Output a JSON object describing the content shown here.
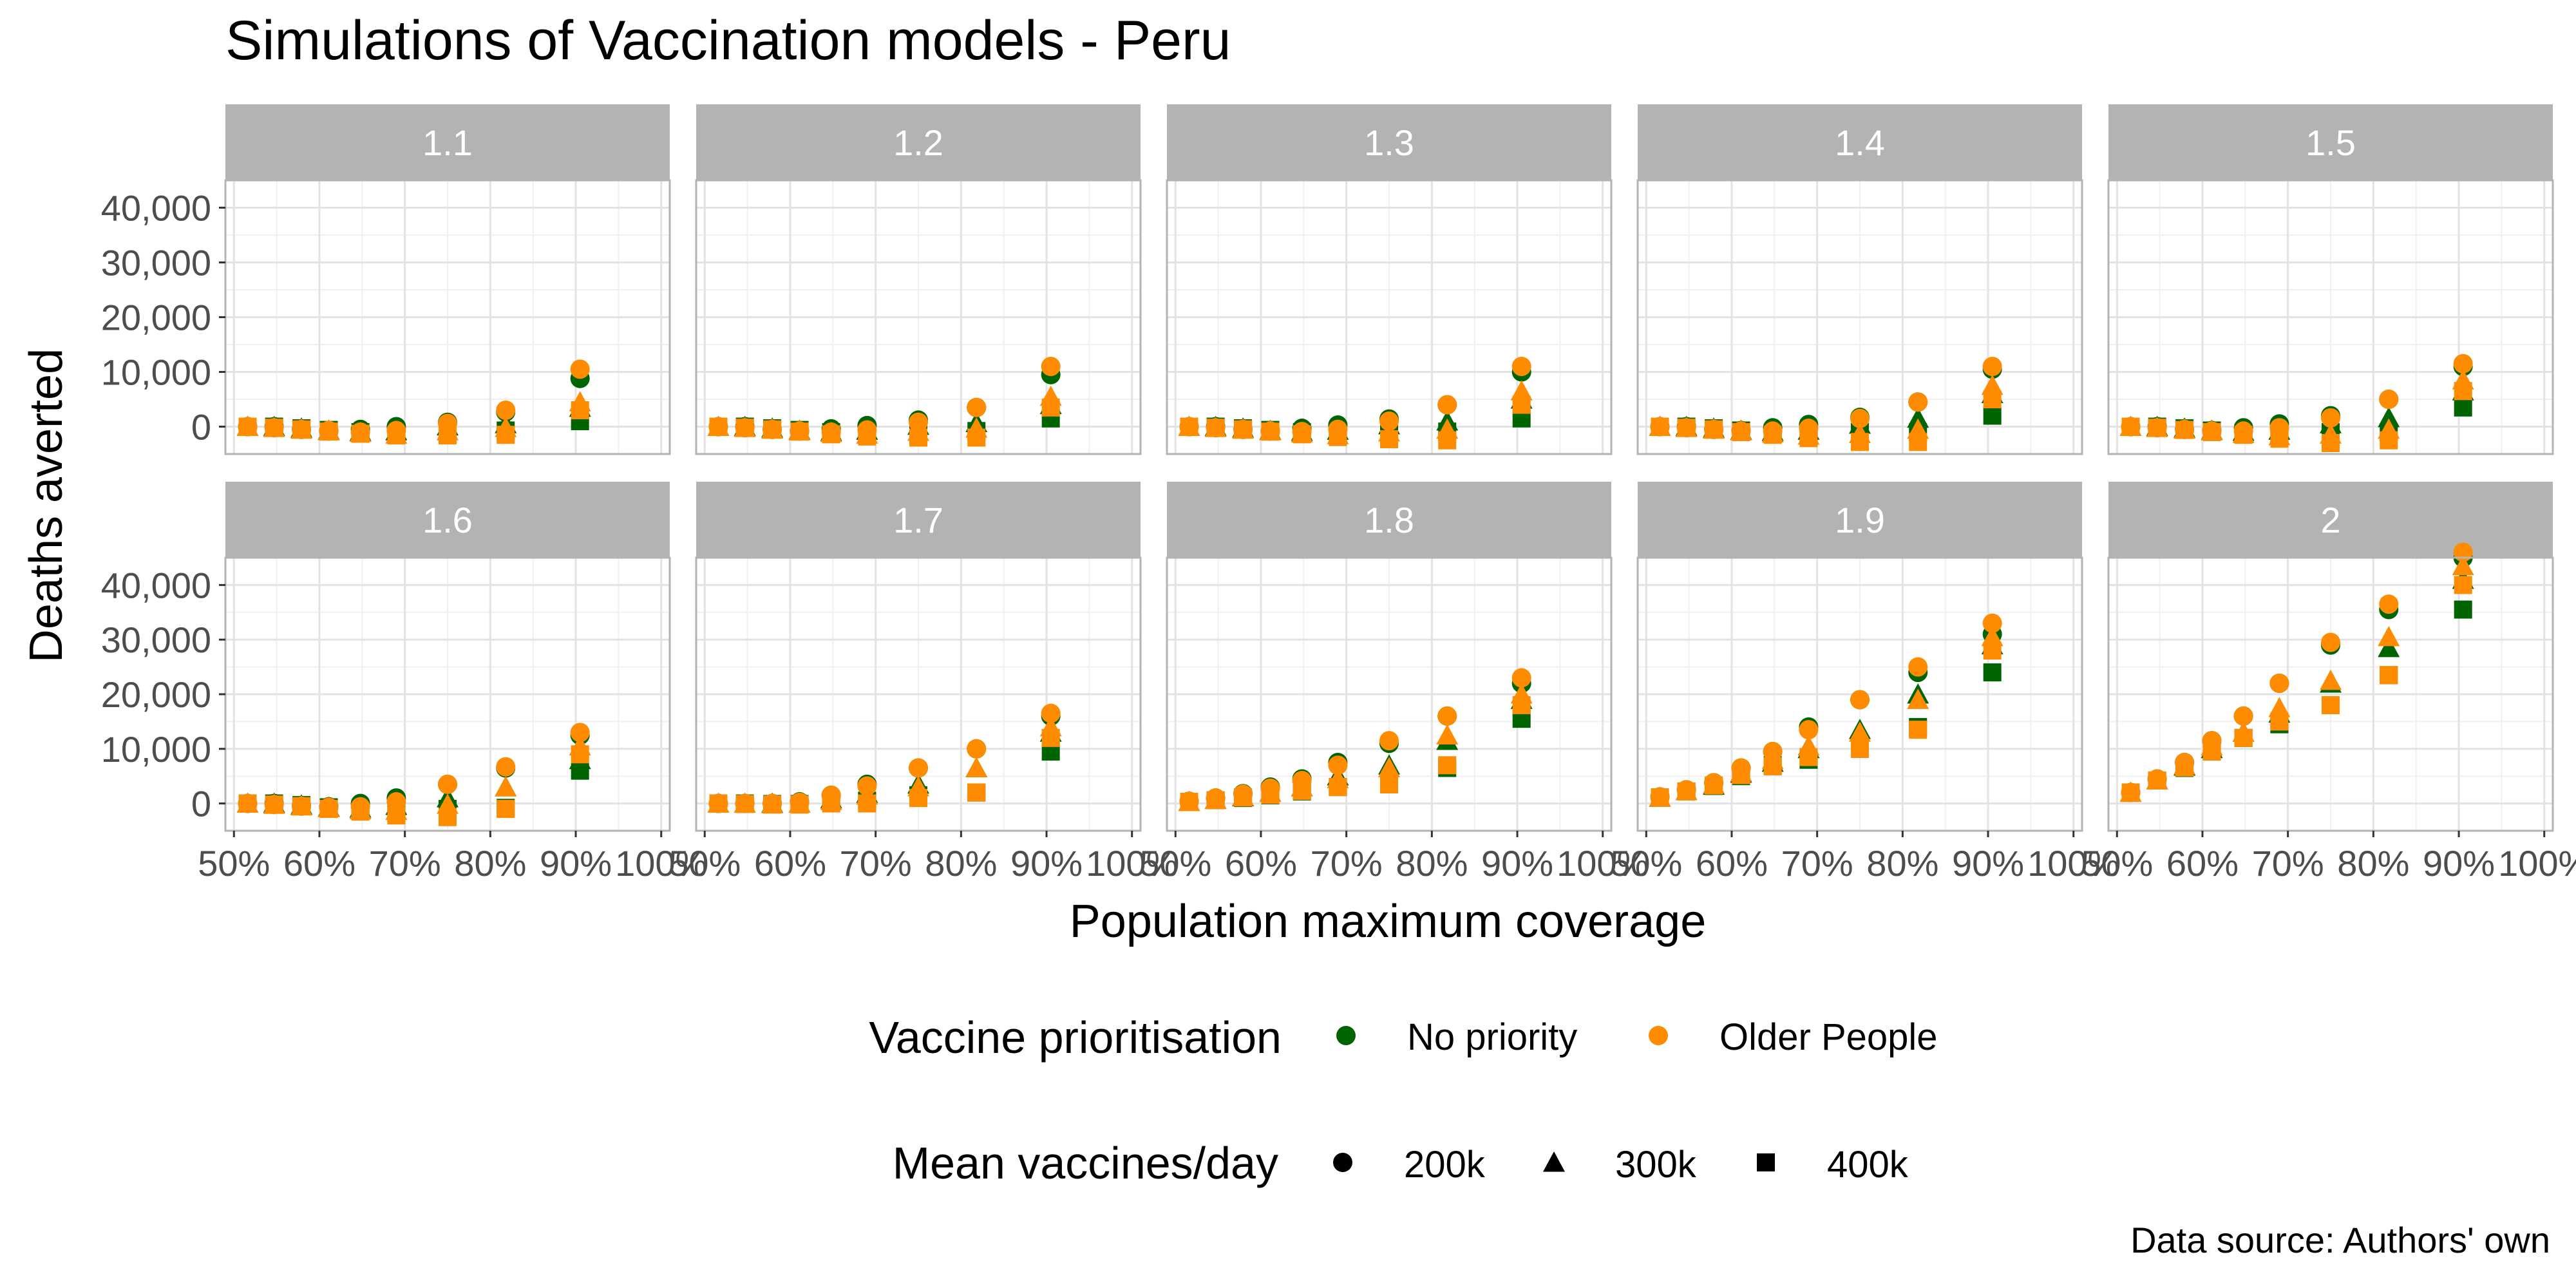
{
  "title": "Simulations of Vaccination models - Peru",
  "caption": "Data source: Authors' own",
  "legend": {
    "color_title": "Vaccine prioritisation",
    "color_items": [
      {
        "label": "No priority",
        "color": "#006400"
      },
      {
        "label": "Older People",
        "color": "#FF8C00"
      }
    ],
    "shape_title": "Mean vaccines/day",
    "shape_items": [
      {
        "label": "200k",
        "shape": "circle"
      },
      {
        "label": "300k",
        "shape": "triangle"
      },
      {
        "label": "400k",
        "shape": "square"
      }
    ]
  },
  "chart_data": {
    "type": "scatter",
    "facet_layout": "2 rows x 5 columns",
    "xlabel": "Population maximum coverage",
    "ylabel": "Deaths averted",
    "x_ticks": [
      "50%",
      "60%",
      "70%",
      "80%",
      "90%",
      "100%"
    ],
    "x_tick_values": [
      0.5,
      0.6,
      0.7,
      0.8,
      0.9,
      1.0
    ],
    "xlim": [
      0.49,
      1.01
    ],
    "y_ticks": [
      "0",
      "10,000",
      "20,000",
      "30,000",
      "40,000"
    ],
    "y_tick_values": [
      0,
      10000,
      20000,
      30000,
      40000
    ],
    "ylim": [
      -5000,
      45000
    ],
    "grid": true,
    "legend_position": "bottom",
    "x": [
      0.516,
      0.547,
      0.579,
      0.611,
      0.648,
      0.69,
      0.75,
      0.818,
      0.905
    ],
    "series_keys": [
      "No priority / 200k",
      "No priority / 300k",
      "No priority / 400k",
      "Older People / 200k",
      "Older People / 300k",
      "Older People / 400k"
    ],
    "facets": [
      {
        "label": "1.1",
        "series": [
          [
            0,
            0,
            -500,
            -800,
            -500,
            0,
            800,
            2700,
            8800
          ],
          [
            0,
            0,
            -300,
            -700,
            -900,
            -800,
            100,
            500,
            3500
          ],
          [
            0,
            0,
            -300,
            -600,
            -1000,
            -1300,
            -700,
            -700,
            1000
          ],
          [
            0,
            -200,
            -500,
            -700,
            -1000,
            -700,
            600,
            3000,
            10500
          ],
          [
            0,
            -200,
            -500,
            -800,
            -1100,
            -1400,
            -800,
            -200,
            4500
          ],
          [
            0,
            -200,
            -500,
            -900,
            -1300,
            -1600,
            -1600,
            -1500,
            3000
          ]
        ]
      },
      {
        "label": "1.2",
        "series": [
          [
            0,
            0,
            -500,
            -800,
            -400,
            200,
            1200,
            3500,
            9500
          ],
          [
            0,
            0,
            -300,
            -700,
            -900,
            -700,
            200,
            700,
            4000
          ],
          [
            0,
            0,
            -300,
            -600,
            -1000,
            -1300,
            -800,
            -800,
            1500
          ],
          [
            0,
            -200,
            -500,
            -800,
            -1000,
            -600,
            800,
            3500,
            11000
          ],
          [
            0,
            -200,
            -500,
            -800,
            -1100,
            -1400,
            -900,
            -300,
            5500
          ],
          [
            0,
            -200,
            -500,
            -900,
            -1400,
            -1800,
            -2000,
            -2000,
            3500
          ]
        ]
      },
      {
        "label": "1.3",
        "series": [
          [
            0,
            0,
            -500,
            -800,
            -300,
            300,
            1400,
            4000,
            10000
          ],
          [
            0,
            0,
            -300,
            -700,
            -900,
            -700,
            300,
            1000,
            5000
          ],
          [
            0,
            0,
            -300,
            -600,
            -1000,
            -1400,
            -900,
            -900,
            1500
          ],
          [
            0,
            -200,
            -500,
            -800,
            -900,
            -500,
            1000,
            4000,
            11000
          ],
          [
            0,
            -200,
            -500,
            -800,
            -1200,
            -1500,
            -1000,
            -500,
            6500
          ],
          [
            0,
            -200,
            -500,
            -900,
            -1400,
            -1900,
            -2300,
            -2500,
            4000
          ]
        ]
      },
      {
        "label": "1.4",
        "series": [
          [
            0,
            0,
            -500,
            -700,
            -200,
            400,
            1700,
            4500,
            10500
          ],
          [
            0,
            0,
            -300,
            -700,
            -900,
            -700,
            400,
            1500,
            6000
          ],
          [
            0,
            0,
            -300,
            -700,
            -1100,
            -1500,
            -1000,
            -1000,
            2000
          ],
          [
            0,
            -200,
            -500,
            -800,
            -800,
            -300,
            1500,
            4500,
            11000
          ],
          [
            0,
            -200,
            -500,
            -800,
            -1200,
            -1600,
            -1300,
            -500,
            7500
          ],
          [
            0,
            -200,
            -500,
            -1000,
            -1500,
            -2100,
            -2800,
            -2800,
            5000
          ]
        ]
      },
      {
        "label": "1.5",
        "series": [
          [
            0,
            0,
            -500,
            -700,
            -200,
            500,
            2000,
            5000,
            11000
          ],
          [
            0,
            0,
            -300,
            -700,
            -900,
            -700,
            500,
            1600,
            6500
          ],
          [
            0,
            0,
            -300,
            -700,
            -1100,
            -1500,
            -1000,
            -1000,
            3500
          ],
          [
            0,
            -200,
            -500,
            -800,
            -800,
            -200,
            1600,
            5000,
            11500
          ],
          [
            0,
            -200,
            -500,
            -800,
            -1300,
            -1700,
            -1400,
            -500,
            8500
          ],
          [
            0,
            -200,
            -600,
            -1000,
            -1500,
            -2200,
            -3000,
            -2500,
            6500
          ]
        ]
      },
      {
        "label": "1.6",
        "series": [
          [
            0,
            0,
            -400,
            -600,
            0,
            1000,
            3500,
            6500,
            12500
          ],
          [
            0,
            0,
            -300,
            -700,
            -900,
            -400,
            1000,
            3000,
            8000
          ],
          [
            0,
            0,
            -300,
            -700,
            -1100,
            -1500,
            -1000,
            -800,
            6000
          ],
          [
            0,
            -200,
            -500,
            -700,
            -600,
            300,
            3500,
            6700,
            13000
          ],
          [
            0,
            -200,
            -500,
            -800,
            -1200,
            -1300,
            -200,
            3000,
            10500
          ],
          [
            0,
            -200,
            -500,
            -1000,
            -1500,
            -2200,
            -2500,
            -1000,
            9000
          ]
        ]
      },
      {
        "label": "1.7",
        "series": [
          [
            0,
            0,
            0,
            300,
            1500,
            3500,
            6500,
            10000,
            16000
          ],
          [
            0,
            0,
            0,
            0,
            800,
            1800,
            3500,
            6500,
            13000
          ],
          [
            0,
            0,
            -100,
            -100,
            300,
            500,
            1500,
            2000,
            9500
          ],
          [
            0,
            0,
            0,
            200,
            1500,
            3200,
            6500,
            10000,
            16500
          ],
          [
            0,
            0,
            -100,
            0,
            500,
            1500,
            3000,
            6500,
            14000
          ],
          [
            0,
            -100,
            -200,
            -200,
            0,
            0,
            1000,
            2000,
            12000
          ]
        ]
      },
      {
        "label": "1.8",
        "series": [
          [
            400,
            1000,
            1800,
            3000,
            4500,
            7500,
            11000,
            16000,
            22000
          ],
          [
            300,
            700,
            1200,
            2000,
            3000,
            5000,
            7000,
            11500,
            19000
          ],
          [
            300,
            600,
            1000,
            1500,
            2200,
            3000,
            3500,
            6500,
            15500
          ],
          [
            400,
            1000,
            1700,
            2800,
            4200,
            7000,
            11500,
            16000,
            23000
          ],
          [
            300,
            700,
            1300,
            2000,
            3000,
            4500,
            6500,
            12500,
            20000
          ],
          [
            300,
            600,
            1100,
            1600,
            2300,
            3000,
            3500,
            7000,
            18000
          ]
        ]
      },
      {
        "label": "1.9",
        "series": [
          [
            1200,
            2500,
            3800,
            6500,
            9500,
            14000,
            19000,
            24000,
            31000
          ],
          [
            1100,
            2300,
            3300,
            5500,
            7500,
            10000,
            13500,
            20000,
            29000
          ],
          [
            1100,
            2200,
            3200,
            5000,
            7000,
            8000,
            10000,
            14000,
            24000
          ],
          [
            1200,
            2500,
            3800,
            6500,
            9500,
            13500,
            19000,
            25000,
            33000
          ],
          [
            1100,
            2300,
            3500,
            5700,
            8000,
            10500,
            13000,
            19000,
            30500
          ],
          [
            1100,
            2200,
            3300,
            5200,
            6800,
            8500,
            10000,
            13500,
            28000
          ]
        ]
      },
      {
        "label": "2",
        "series": [
          [
            2000,
            4500,
            7500,
            11500,
            16000,
            22000,
            29000,
            35500,
            45000
          ],
          [
            2000,
            4300,
            6800,
            10000,
            13000,
            16500,
            22000,
            28500,
            41000
          ],
          [
            2000,
            4200,
            6500,
            9500,
            12000,
            14500,
            18000,
            23500,
            35500
          ],
          [
            2000,
            4500,
            7500,
            11500,
            16000,
            22000,
            29500,
            36500,
            46000
          ],
          [
            2000,
            4300,
            7000,
            10500,
            13000,
            17500,
            22500,
            30500,
            43500
          ],
          [
            2000,
            4200,
            6600,
            9500,
            12000,
            15000,
            18000,
            23500,
            40000
          ]
        ]
      }
    ]
  }
}
